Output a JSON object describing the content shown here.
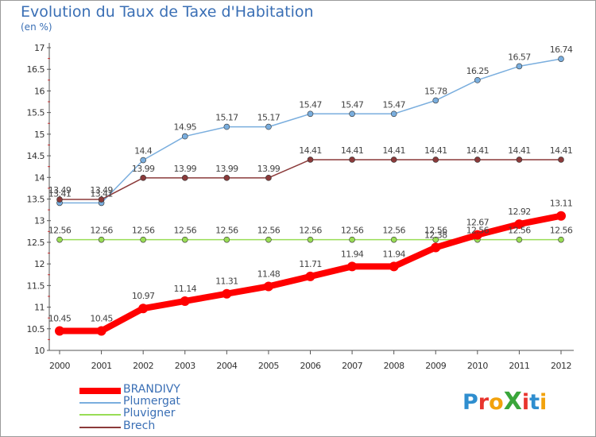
{
  "title": "Evolution du Taux de Taxe d'Habitation",
  "unit": "(en %)",
  "logo": {
    "text": "ProXiti",
    "letters": [
      "P",
      "r",
      "o",
      "X",
      "i",
      "t",
      "i"
    ],
    "colors": [
      "#2f8ecf",
      "#e8352e",
      "#f2a20c",
      "#3aa63a",
      "#e8352e",
      "#2f8ecf",
      "#f2a20c"
    ]
  },
  "chart_data": {
    "type": "line",
    "title": "Evolution du Taux de Taxe d'Habitation",
    "ylabel": "(en %)",
    "xlabel": "",
    "x": [
      "2000",
      "2001",
      "2002",
      "2003",
      "2004",
      "2005",
      "2006",
      "2007",
      "2008",
      "2009",
      "2010",
      "2011",
      "2012"
    ],
    "ylim": [
      10,
      17
    ],
    "yticks": [
      "10",
      "10.5",
      "11",
      "11.5",
      "12",
      "12.5",
      "13",
      "13.5",
      "14",
      "14.5",
      "15",
      "15.5",
      "16",
      "16.5",
      "17"
    ],
    "grid": false,
    "legend": "bottom-left",
    "series": [
      {
        "name": "BRANDIVY",
        "color": "#ff0000",
        "values": [
          10.45,
          10.45,
          10.97,
          11.14,
          11.31,
          11.48,
          11.71,
          11.94,
          11.94,
          12.38,
          12.67,
          12.92,
          13.11
        ],
        "labels": [
          "10.45",
          "10.45",
          "10.97",
          "11.14",
          "11.31",
          "11.48",
          "11.71",
          "11.94",
          "11.94",
          "12.38",
          "12.67",
          "12.92",
          "13.11"
        ]
      },
      {
        "name": "Plumergat",
        "color": "#7aaede",
        "values": [
          13.41,
          13.41,
          14.4,
          14.95,
          15.17,
          15.17,
          15.47,
          15.47,
          15.47,
          15.78,
          16.25,
          16.57,
          16.74
        ],
        "labels": [
          "13.41",
          "13.41",
          "14.4",
          "14.95",
          "15.17",
          "15.17",
          "15.47",
          "15.47",
          "15.47",
          "15.78",
          "16.25",
          "16.57",
          "16.74"
        ]
      },
      {
        "name": "Pluvigner",
        "color": "#99dd55",
        "values": [
          12.56,
          12.56,
          12.56,
          12.56,
          12.56,
          12.56,
          12.56,
          12.56,
          12.56,
          12.56,
          12.56,
          12.56,
          12.56
        ],
        "labels": [
          "12.56",
          "12.56",
          "12.56",
          "12.56",
          "12.56",
          "12.56",
          "12.56",
          "12.56",
          "12.56",
          "12.56",
          "12.56",
          "12.56",
          "12.56"
        ]
      },
      {
        "name": "Brech",
        "color": "#8b3a3a",
        "values": [
          13.49,
          13.49,
          13.99,
          13.99,
          13.99,
          13.99,
          14.41,
          14.41,
          14.41,
          14.41,
          14.41,
          14.41,
          14.41
        ],
        "labels": [
          "13.49",
          "13.49",
          "13.99",
          "13.99",
          "13.99",
          "13.99",
          "14.41",
          "14.41",
          "14.41",
          "14.41",
          "14.41",
          "14.41",
          "14.41"
        ]
      }
    ]
  }
}
